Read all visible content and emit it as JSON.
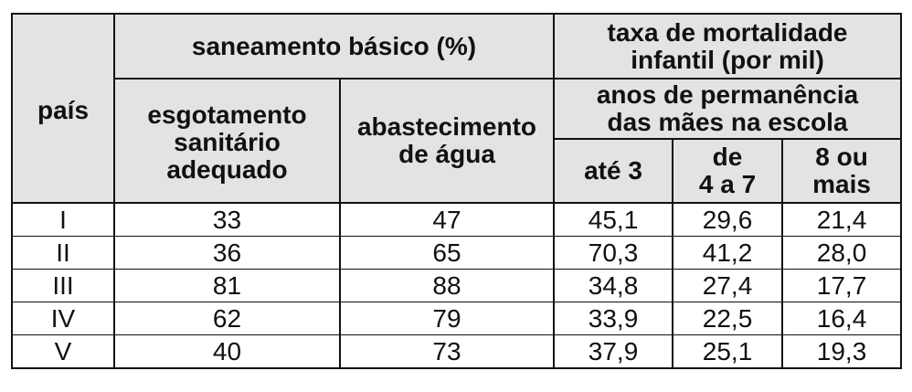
{
  "header": {
    "country": "país",
    "sanitation_group": "saneamento básico (%)",
    "sewage": [
      "esgotamento",
      "sanitário",
      "adequado"
    ],
    "water": [
      "abastecimento",
      "de água"
    ],
    "mortality_group": [
      "taxa de mortalidade",
      "infantil (por mil)"
    ],
    "schooling_group": [
      "anos de permanência",
      "das mães na escola"
    ],
    "up_to_3": "até 3",
    "four_to_seven": [
      "de",
      "4 a 7"
    ],
    "eight_plus": [
      "8 ou",
      "mais"
    ]
  },
  "rows": [
    {
      "country": "I",
      "sewage": "33",
      "water": "47",
      "up_to_3": "45,1",
      "four_to_seven": "29,6",
      "eight_plus": "21,4"
    },
    {
      "country": "II",
      "sewage": "36",
      "water": "65",
      "up_to_3": "70,3",
      "four_to_seven": "41,2",
      "eight_plus": "28,0"
    },
    {
      "country": "III",
      "sewage": "81",
      "water": "88",
      "up_to_3": "34,8",
      "four_to_seven": "27,4",
      "eight_plus": "17,7"
    },
    {
      "country": "IV",
      "sewage": "62",
      "water": "79",
      "up_to_3": "33,9",
      "four_to_seven": "22,5",
      "eight_plus": "16,4"
    },
    {
      "country": "V",
      "sewage": "40",
      "water": "73",
      "up_to_3": "37,9",
      "four_to_seven": "25,1",
      "eight_plus": "19,3"
    }
  ]
}
